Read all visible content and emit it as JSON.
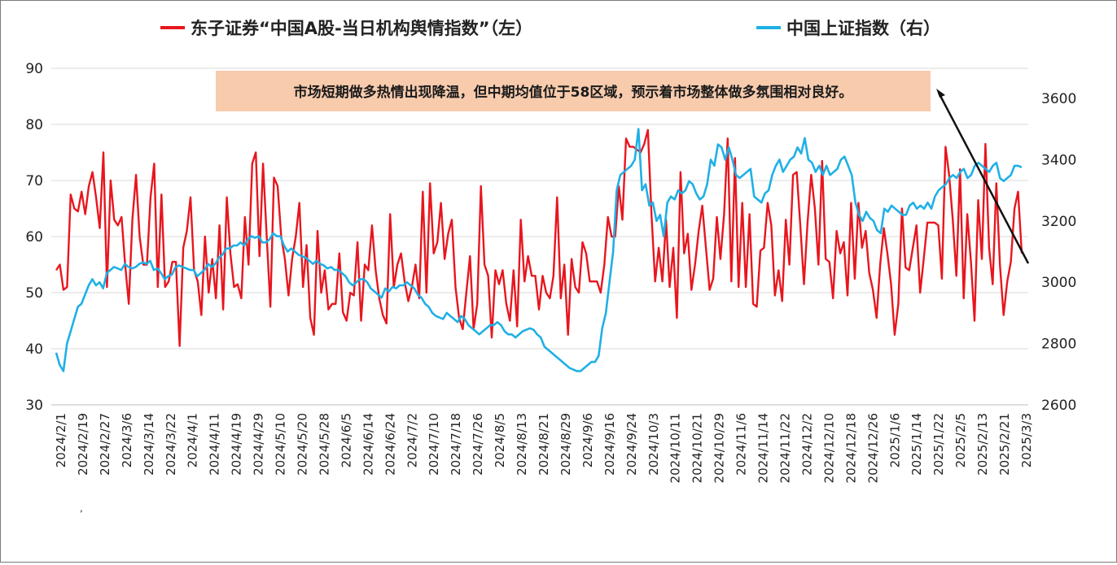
{
  "colors": {
    "left_series": "#e8161e",
    "right_series": "#1fb0e6",
    "annotation_bg": "#f8cbad",
    "grid": "#d9d9d9",
    "arrow": "#111111"
  },
  "legend": {
    "left_label": "东子证券“中国A股-当日机构舆情指数”（左）",
    "right_label": "中国上证指数（右）"
  },
  "annotation": {
    "text": "市场短期做多热情出现降温，但中期均值位于58区域，预示着市场整体做多氛围相对良好。"
  },
  "chart_data": {
    "type": "line",
    "title": "",
    "xlabel": "",
    "ylabel": "",
    "grid": "horizontal",
    "legend_position": "top",
    "y_left": {
      "ticks": [
        "30",
        "40",
        "50",
        "60",
        "70",
        "80",
        "90"
      ],
      "range": [
        30,
        90
      ]
    },
    "y_right": {
      "ticks": [
        "2600",
        "2800",
        "3000",
        "3200",
        "3400",
        "3600"
      ],
      "range": [
        2600,
        3650
      ]
    },
    "x_tick_labels": [
      "2024/2/1",
      "2024/2/19",
      "2024/2/27",
      "2024/3/6",
      "2024/3/14",
      "2024/3/22",
      "2024/4/1",
      "2024/4/11",
      "2024/4/19",
      "2024/4/29",
      "2024/5/10",
      "2024/5/20",
      "2024/5/28",
      "2024/6/5",
      "2024/6/14",
      "2024/6/24",
      "2024/7/2",
      "2024/7/10",
      "2024/7/18",
      "2024/7/26",
      "2024/8/5",
      "2024/8/13",
      "2024/8/21",
      "2024/8/29",
      "2024/9/6",
      "2024/9/16",
      "2024/9/24",
      "2024/10/3",
      "2024/10/11",
      "2024/10/21",
      "2024/10/29",
      "2024/11/6",
      "2024/11/14",
      "2024/11/22",
      "2024/12/2",
      "2024/12/10",
      "2024/12/18",
      "2024/12/26",
      "2025/1/6",
      "2025/1/14",
      "2025/1/22",
      "2025/2/5",
      "2025/2/13",
      "2025/2/21",
      "2025/3/3"
    ],
    "series": [
      {
        "name": "东子证券“中国A股-当日机构舆情指数”（左）",
        "axis": "left",
        "values": [
          54,
          55,
          50.5,
          51,
          67.5,
          65,
          64.5,
          68,
          64,
          69,
          71.5,
          67,
          61.5,
          75,
          51,
          70,
          63,
          62,
          63.5,
          55,
          48,
          63,
          71,
          60,
          55,
          55,
          67,
          73,
          51,
          67.5,
          51,
          52,
          55.5,
          55.5,
          40.5,
          58,
          61,
          67,
          54,
          52,
          46,
          60,
          50,
          56,
          49,
          62,
          47,
          67,
          57,
          51,
          51.5,
          49,
          63.5,
          55,
          73,
          75,
          56.5,
          73,
          60,
          47.5,
          70.5,
          69,
          60,
          56,
          49.5,
          56,
          60,
          66,
          51,
          58.5,
          45.5,
          42.5,
          61,
          50,
          54,
          47,
          48,
          48,
          57,
          46.5,
          45,
          50,
          49.5,
          59,
          45,
          55,
          54,
          62,
          54,
          49,
          46,
          44.5,
          64,
          51,
          55,
          57,
          52,
          48.5,
          51,
          55,
          49,
          68,
          50,
          69.5,
          57,
          59,
          66,
          56,
          60.5,
          63,
          51,
          45.5,
          43.5,
          50,
          56.5,
          43.5,
          48,
          69,
          55,
          53,
          42,
          54,
          51.5,
          54,
          48,
          45,
          54,
          44,
          63,
          52,
          56.5,
          53,
          53,
          47,
          53,
          50,
          49,
          53,
          67,
          49,
          55,
          42.5,
          56,
          51,
          50,
          59,
          57,
          52,
          52,
          52,
          50,
          55,
          63.5,
          60,
          60,
          69,
          63,
          77.5,
          76,
          76,
          75.5,
          75,
          76.5,
          79,
          64,
          52,
          58,
          52,
          63,
          51,
          58,
          45.5,
          71.5,
          57,
          60.5,
          50.5,
          55,
          61,
          65.5,
          58,
          50.5,
          52.5,
          63.5,
          56,
          64,
          77.5,
          52,
          74,
          51,
          66,
          51,
          64,
          48,
          47.5,
          57.5,
          58,
          66,
          62,
          49.5,
          54,
          48.5,
          63,
          55,
          71,
          71.5,
          62,
          51.5,
          62.5,
          71,
          65,
          55,
          73.5,
          56,
          55.5,
          49,
          61,
          57,
          59,
          49.5,
          66,
          52.5,
          66,
          58,
          61,
          53.5,
          50.5,
          45.5,
          55,
          61.5,
          57,
          51.5,
          42.5,
          48,
          65,
          54.5,
          54,
          58,
          62,
          50,
          56,
          62.5,
          62.5,
          62.5,
          62,
          52.5,
          76,
          71,
          63,
          53,
          72,
          49,
          64,
          55.5,
          45,
          66.5,
          56,
          76.5,
          58,
          51.5,
          69.5,
          55,
          46,
          52,
          55.5,
          65,
          68,
          57
        ]
      },
      {
        "name": "中国上证指数（右）",
        "axis": "right",
        "values": [
          2770,
          2730,
          2710,
          2800,
          2840,
          2880,
          2920,
          2930,
          2960,
          2990,
          3010,
          2990,
          3000,
          2980,
          3030,
          3040,
          3050,
          3045,
          3040,
          3060,
          3050,
          3045,
          3050,
          3060,
          3065,
          3060,
          3070,
          3040,
          3045,
          3030,
          3010,
          3020,
          3025,
          3050,
          3055,
          3050,
          3045,
          3040,
          3040,
          3020,
          3030,
          3040,
          3060,
          3050,
          3060,
          3080,
          3090,
          3110,
          3110,
          3120,
          3120,
          3130,
          3120,
          3140,
          3150,
          3145,
          3150,
          3130,
          3130,
          3140,
          3160,
          3150,
          3150,
          3120,
          3100,
          3110,
          3100,
          3090,
          3085,
          3080,
          3070,
          3060,
          3070,
          3060,
          3055,
          3045,
          3050,
          3040,
          3040,
          3030,
          3020,
          3000,
          2990,
          3000,
          3010,
          3010,
          3000,
          2980,
          2970,
          2960,
          2950,
          2980,
          2970,
          2985,
          2980,
          2990,
          2990,
          3000,
          2990,
          2980,
          2960,
          2950,
          2930,
          2920,
          2900,
          2890,
          2885,
          2880,
          2900,
          2890,
          2880,
          2870,
          2890,
          2880,
          2860,
          2850,
          2840,
          2830,
          2840,
          2850,
          2860,
          2860,
          2870,
          2860,
          2840,
          2830,
          2830,
          2820,
          2830,
          2840,
          2845,
          2850,
          2845,
          2830,
          2820,
          2790,
          2780,
          2770,
          2760,
          2750,
          2740,
          2730,
          2720,
          2715,
          2710,
          2710,
          2720,
          2730,
          2740,
          2740,
          2760,
          2850,
          2900,
          3000,
          3100,
          3300,
          3350,
          3360,
          3370,
          3380,
          3400,
          3500,
          3300,
          3320,
          3250,
          3260,
          3200,
          3220,
          3150,
          3260,
          3280,
          3270,
          3300,
          3290,
          3300,
          3330,
          3320,
          3290,
          3270,
          3280,
          3320,
          3400,
          3380,
          3450,
          3440,
          3400,
          3440,
          3400,
          3350,
          3340,
          3350,
          3360,
          3370,
          3280,
          3270,
          3260,
          3290,
          3300,
          3350,
          3380,
          3400,
          3360,
          3380,
          3400,
          3410,
          3440,
          3420,
          3470,
          3400,
          3390,
          3360,
          3380,
          3350,
          3380,
          3350,
          3360,
          3370,
          3400,
          3410,
          3380,
          3350,
          3260,
          3220,
          3200,
          3230,
          3210,
          3200,
          3170,
          3160,
          3240,
          3230,
          3250,
          3240,
          3230,
          3220,
          3220,
          3250,
          3260,
          3240,
          3250,
          3240,
          3260,
          3240,
          3280,
          3300,
          3310,
          3320,
          3340,
          3350,
          3340,
          3360,
          3370,
          3340,
          3350,
          3380,
          3390,
          3380,
          3370,
          3360,
          3380,
          3390,
          3340,
          3330,
          3340,
          3350,
          3380,
          3380,
          3375
        ]
      }
    ]
  }
}
